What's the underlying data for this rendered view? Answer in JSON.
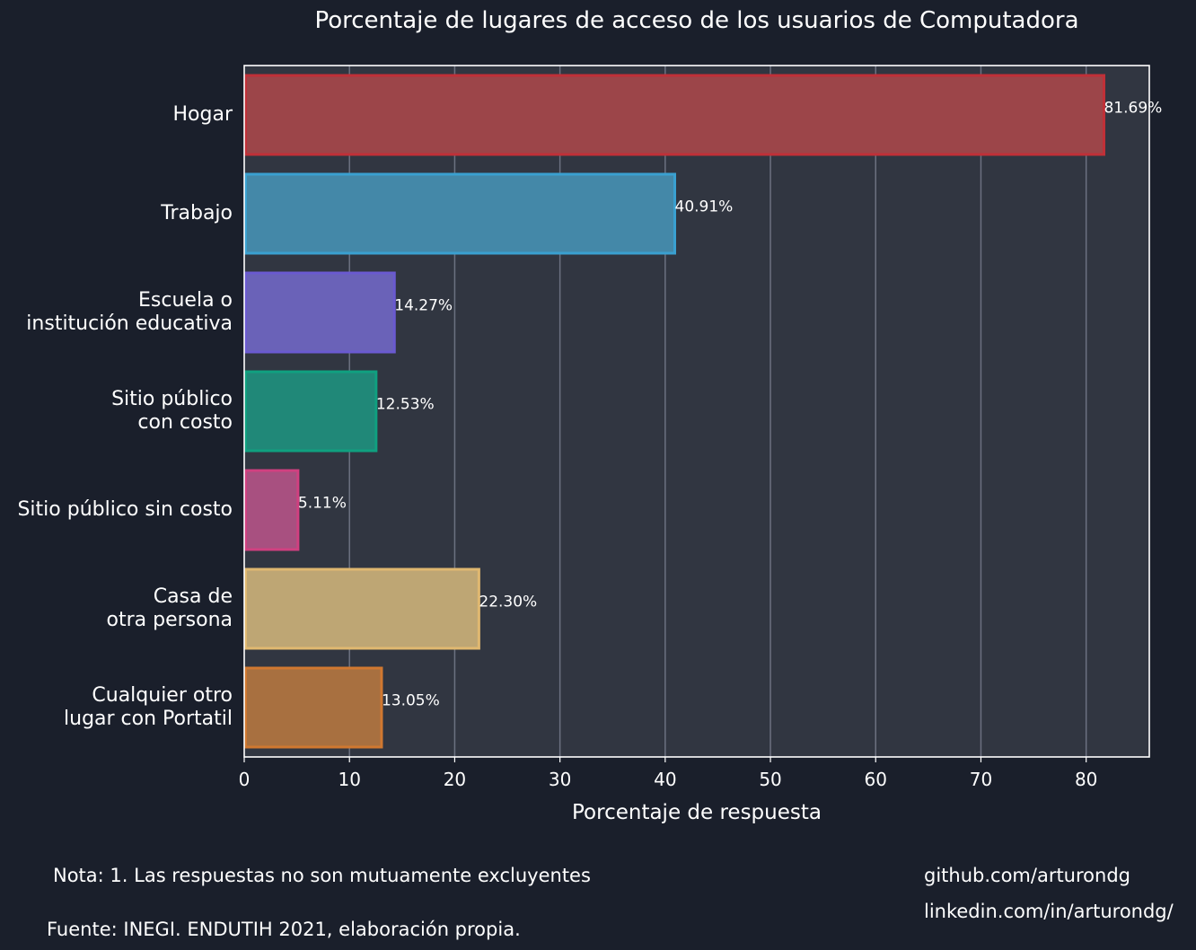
{
  "chart_data": {
    "type": "bar",
    "orientation": "horizontal",
    "title": "Porcentaje de lugares de acceso de los usuarios de Computadora",
    "xlabel": "Porcentaje de respuesta",
    "ylabel": "",
    "xlim": [
      0,
      86
    ],
    "xticks": [
      0,
      10,
      20,
      30,
      40,
      50,
      60,
      70,
      80
    ],
    "grid": "vertical",
    "categories": [
      [
        "Hogar"
      ],
      [
        "Trabajo"
      ],
      [
        "Escuela o",
        "institución educativa"
      ],
      [
        "Sitio público",
        "con costo"
      ],
      [
        "Sitio público sin costo"
      ],
      [
        "Casa de",
        "otra persona"
      ],
      [
        "Cualquier otro",
        "lugar con Portatil"
      ]
    ],
    "values": [
      81.69,
      40.91,
      14.27,
      12.53,
      5.11,
      22.3,
      13.05
    ],
    "value_labels": [
      "81.69%",
      "40.91%",
      "14.27%",
      "12.53%",
      "5.11%",
      "22.30%",
      "13.05%"
    ],
    "colors": {
      "fill": [
        "#9c4549",
        "#4488a8",
        "#6a62b8",
        "#208878",
        "#a85080",
        "#bea674",
        "#a87040"
      ],
      "stroke": [
        "#c03038",
        "#3aa0d0",
        "#6a5ad0",
        "#10a080",
        "#d04080",
        "#e0b870",
        "#d07830"
      ]
    }
  },
  "footer": {
    "note": "Nota: 1. Las respuestas no son mutuamente excluyentes",
    "source": "Fuente: INEGI. ENDUTIH 2021, elaboración propia.",
    "github": "github.com/arturondg",
    "linkedin": "linkedin.com/in/arturondg/"
  },
  "theme": {
    "background": "#1a1f2b",
    "plot_background": "#313641",
    "grid_color": "#6c7180",
    "text_color": "#ffffff"
  }
}
